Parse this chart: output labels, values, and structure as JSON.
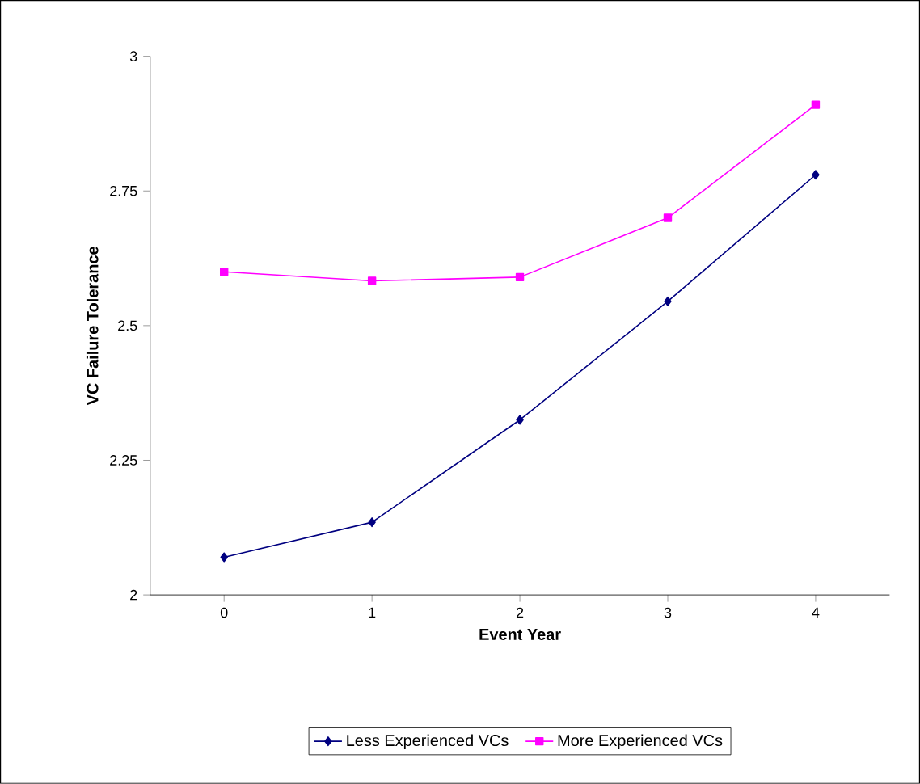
{
  "chart_data": {
    "type": "line",
    "xlabel": "Event Year",
    "ylabel": "VC Failure Tolerance",
    "categories": [
      "0",
      "1",
      "2",
      "3",
      "4"
    ],
    "series": [
      {
        "name": "Less Experienced VCs",
        "color": "#000080",
        "marker": "diamond",
        "values": [
          2.07,
          2.135,
          2.325,
          2.545,
          2.78
        ]
      },
      {
        "name": "More Experienced VCs",
        "color": "#ff00ff",
        "marker": "square",
        "values": [
          2.6,
          2.583,
          2.59,
          2.7,
          2.91
        ]
      }
    ],
    "ylim": [
      2,
      3
    ],
    "yticks": [
      2,
      2.25,
      2.5,
      2.75,
      3
    ],
    "grid": false,
    "legend": "bottom"
  }
}
